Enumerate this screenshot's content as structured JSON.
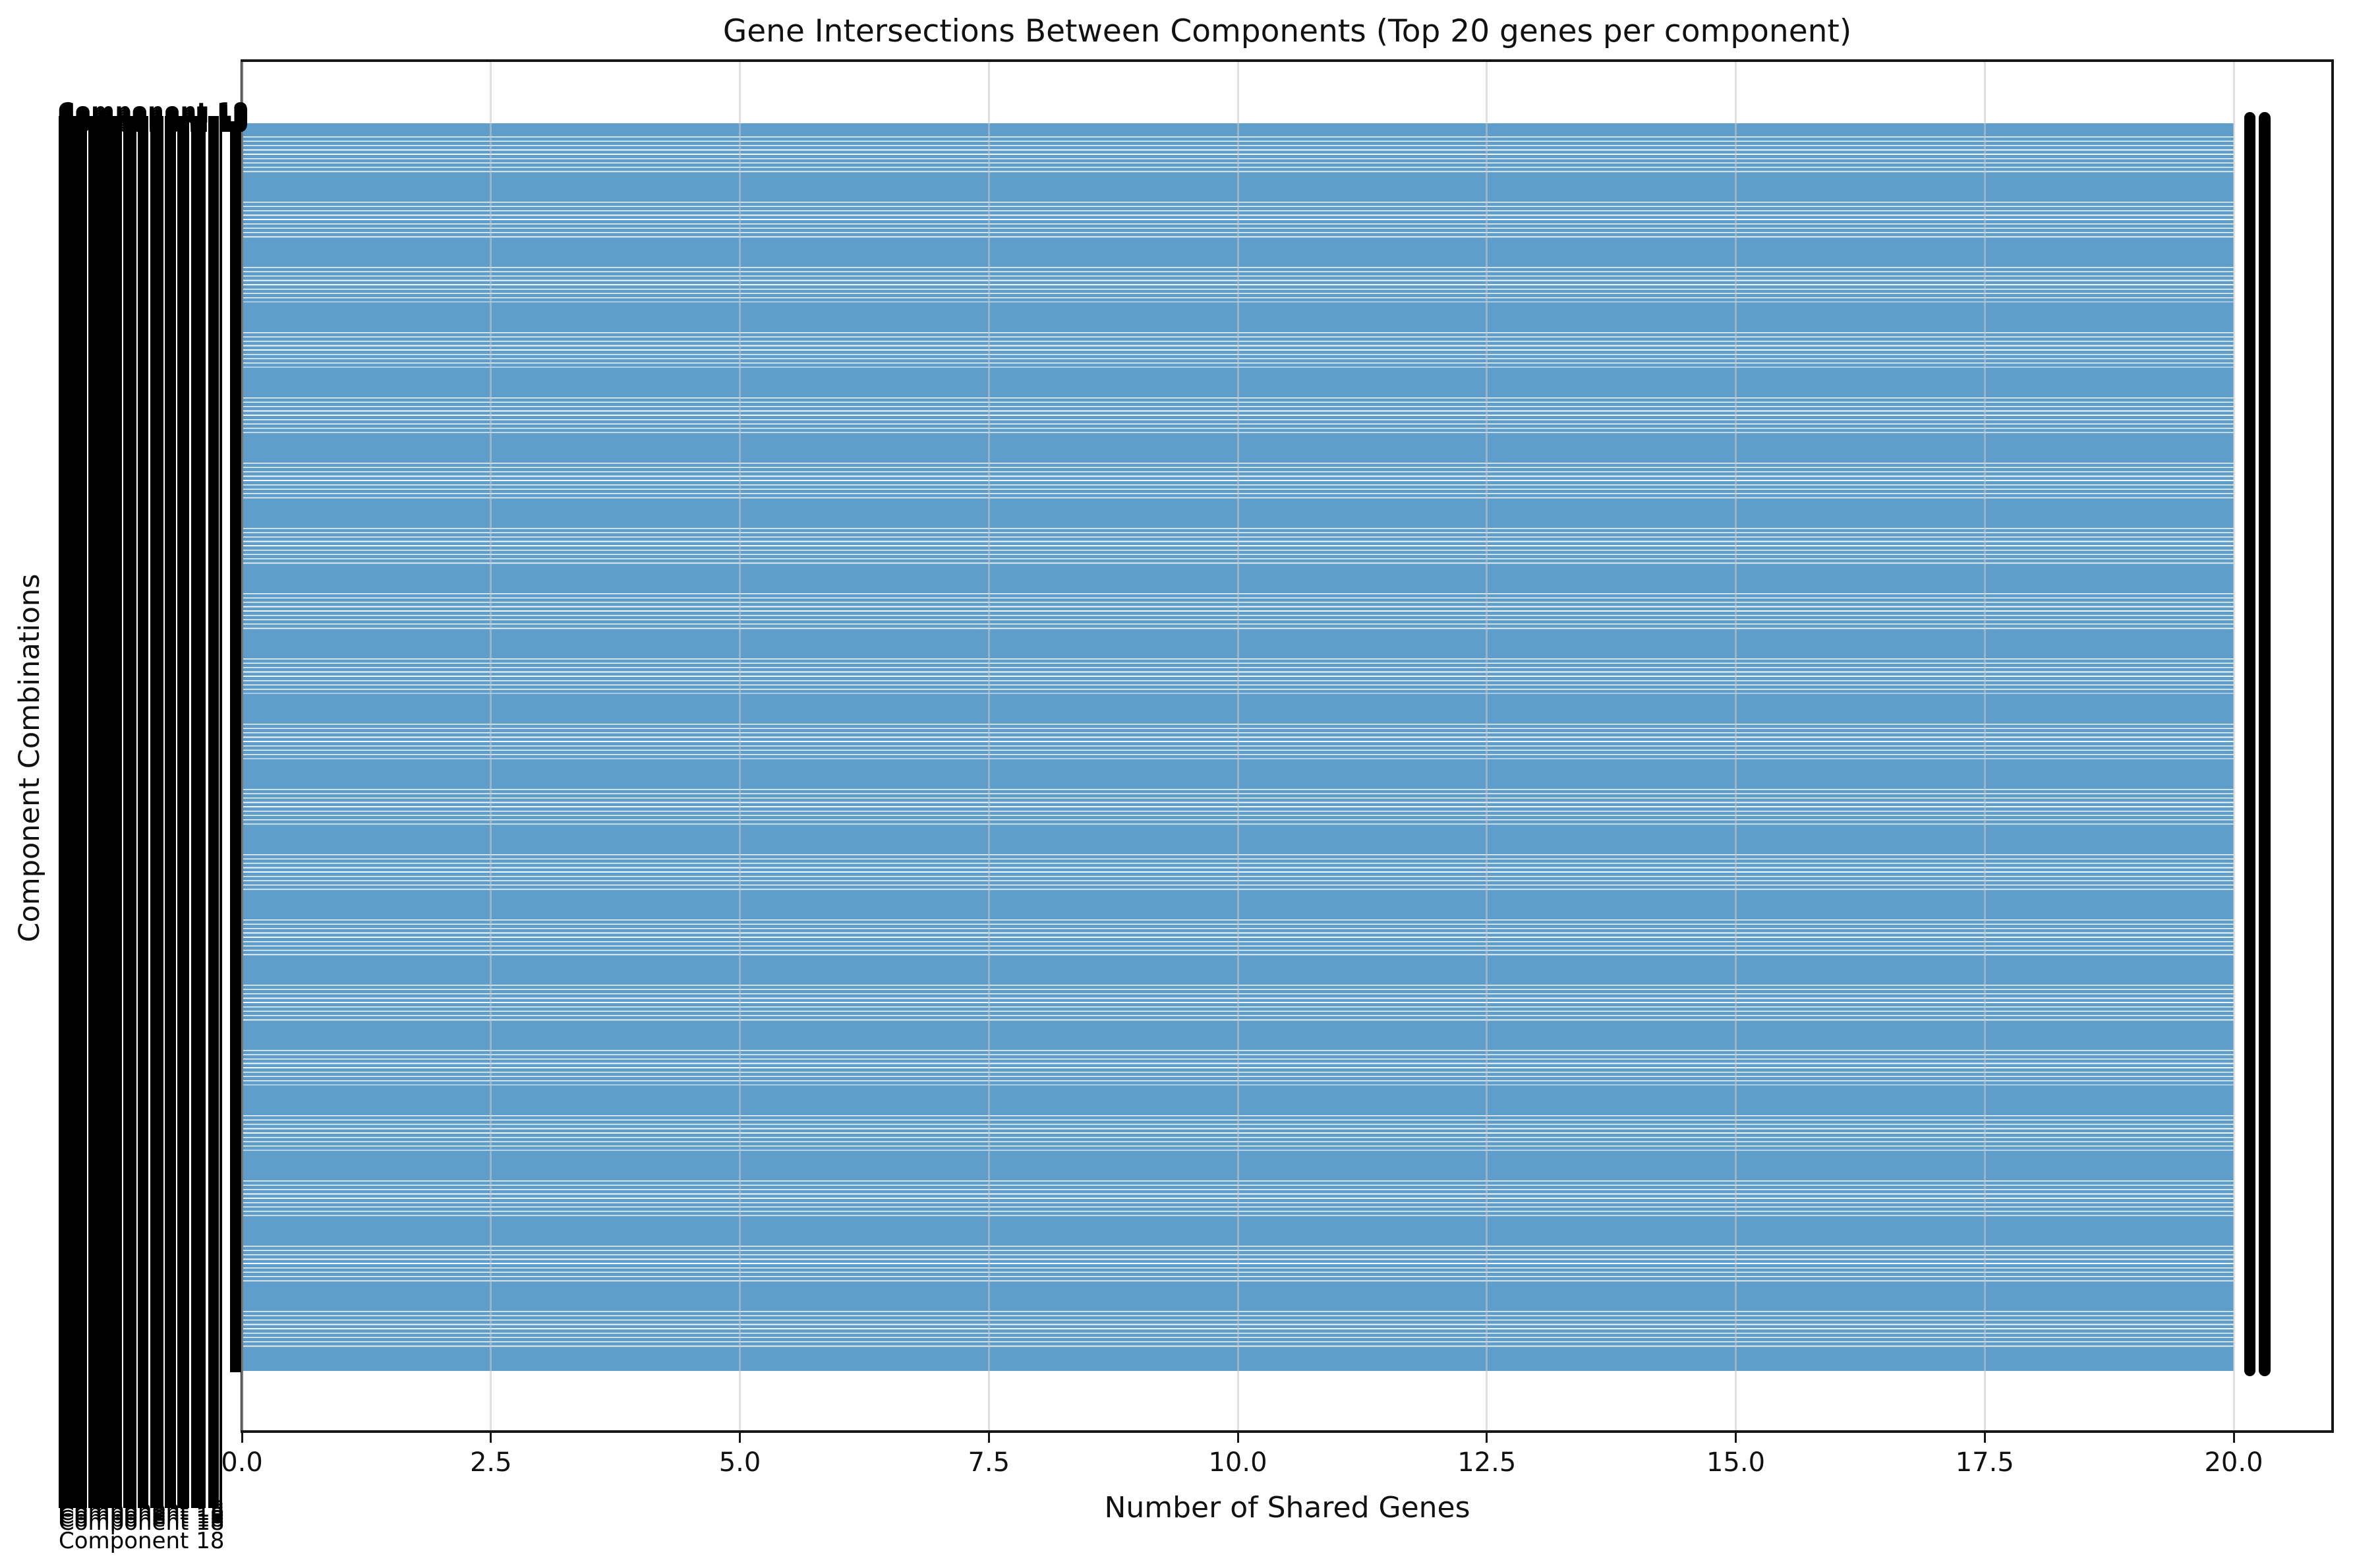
{
  "chart_data": {
    "type": "bar",
    "orientation": "horizontal",
    "title": "Gene Intersections Between Components (Top 20 genes per component)",
    "xlabel": "Number of Shared Genes",
    "ylabel": "Component Combinations",
    "xlim": [
      0,
      20.8
    ],
    "x_tick_values": [
      0,
      2.5,
      5,
      7.5,
      10,
      12.5,
      15,
      17.5,
      20
    ],
    "x_tick_labels": [
      "0.0",
      "2.5",
      "5.0",
      "7.5",
      "10.0",
      "12.5",
      "15.0",
      "17.5",
      "20.0"
    ],
    "grid": "vertical light-gray lines at each x tick",
    "bars": {
      "all_bars_value": 20,
      "value_label": "20",
      "note_visible": "hundreds of densely packed rows, every bar extends to 20; row labels and end-value labels overlap into solid black columns"
    },
    "y_tick_label_fragments": [
      "Component 19",
      "Component 18",
      "Component 18"
    ],
    "colors": {
      "bar": "#5f9ecb",
      "grid": "#e0e0e0",
      "text": "#111111",
      "spine": "#161616"
    },
    "legend": null
  }
}
